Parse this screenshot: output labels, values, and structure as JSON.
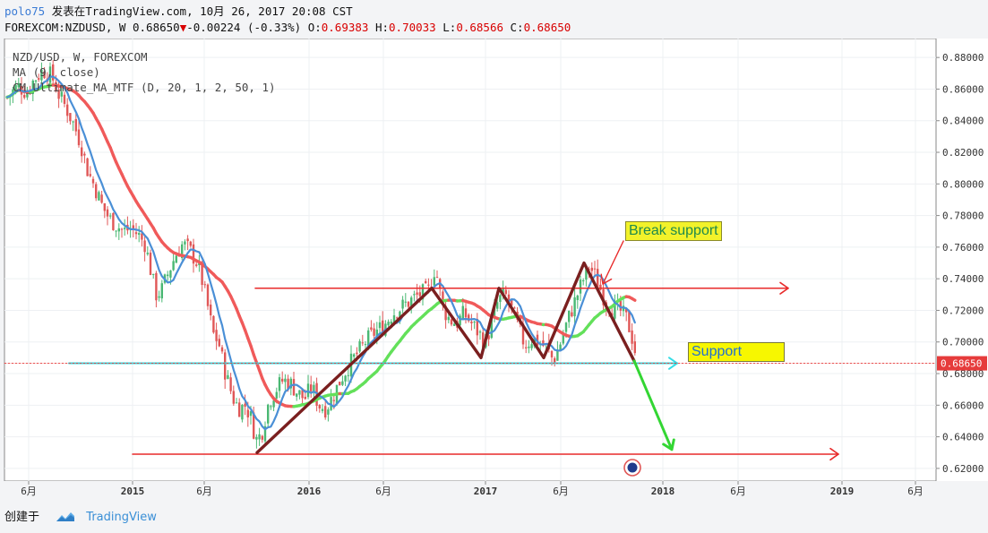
{
  "header": {
    "user": "polo75",
    "published": "发表在TradingView.com, 10月 26, 2017 20:08 CST",
    "symbol_line": "FOREXCOM:NZDUSD, W",
    "last": "0.68650",
    "arrow": "▼",
    "change": "-0.00224 (-0.33%)",
    "o_label": "O:",
    "o_val": "0.69383",
    "h_label": "H:",
    "h_val": "0.70033",
    "l_label": "L:",
    "l_val": "0.68566",
    "c_label": "C:",
    "c_val": "0.68650"
  },
  "legend": {
    "line1": "NZD/USD, W, FOREXCOM",
    "line2": "MA (9, close)",
    "line3": "CM_Ultimate_MA_MTF (D, 20, 1, 2, 50, 1)"
  },
  "annotations": {
    "break_support": "Break support",
    "support": "Support"
  },
  "footer": {
    "created": "创建于",
    "brand": "TradingView"
  },
  "chart_data": {
    "type": "line",
    "title": "NZD/USD, W, FOREXCOM",
    "y_ticks": [
      "0.88000",
      "0.86000",
      "0.84000",
      "0.82000",
      "0.80000",
      "0.78000",
      "0.76000",
      "0.74000",
      "0.72000",
      "0.70000",
      "0.68000",
      "0.66000",
      "0.64000",
      "0.62000"
    ],
    "ylim": [
      0.612,
      0.892
    ],
    "x_ticks": [
      "6月",
      "2015",
      "6月",
      "2016",
      "6月",
      "2017",
      "6月",
      "2018",
      "6月",
      "2019",
      "6月"
    ],
    "current_price_label": "0.68650",
    "price_path": [
      [
        0,
        0.855
      ],
      [
        12,
        0.862
      ],
      [
        22,
        0.858
      ],
      [
        30,
        0.866
      ],
      [
        40,
        0.872
      ],
      [
        50,
        0.868
      ],
      [
        58,
        0.856
      ],
      [
        66,
        0.848
      ],
      [
        74,
        0.838
      ],
      [
        82,
        0.826
      ],
      [
        90,
        0.808
      ],
      [
        98,
        0.798
      ],
      [
        106,
        0.786
      ],
      [
        114,
        0.778
      ],
      [
        122,
        0.774
      ],
      [
        130,
        0.77
      ],
      [
        138,
        0.772
      ],
      [
        146,
        0.768
      ],
      [
        154,
        0.762
      ],
      [
        160,
        0.746
      ],
      [
        166,
        0.73
      ],
      [
        172,
        0.732
      ],
      [
        180,
        0.744
      ],
      [
        188,
        0.755
      ],
      [
        196,
        0.762
      ],
      [
        204,
        0.758
      ],
      [
        212,
        0.75
      ],
      [
        218,
        0.738
      ],
      [
        224,
        0.722
      ],
      [
        230,
        0.705
      ],
      [
        236,
        0.7
      ],
      [
        242,
        0.684
      ],
      [
        248,
        0.672
      ],
      [
        254,
        0.662
      ],
      [
        260,
        0.658
      ],
      [
        266,
        0.66
      ],
      [
        272,
        0.652
      ],
      [
        278,
        0.638
      ],
      [
        284,
        0.642
      ],
      [
        292,
        0.662
      ],
      [
        300,
        0.67
      ],
      [
        308,
        0.676
      ],
      [
        316,
        0.674
      ],
      [
        324,
        0.668
      ],
      [
        332,
        0.664
      ],
      [
        340,
        0.672
      ],
      [
        348,
        0.66
      ],
      [
        356,
        0.658
      ],
      [
        364,
        0.666
      ],
      [
        372,
        0.676
      ],
      [
        380,
        0.684
      ],
      [
        390,
        0.692
      ],
      [
        400,
        0.7
      ],
      [
        410,
        0.706
      ],
      [
        420,
        0.71
      ],
      [
        430,
        0.718
      ],
      [
        440,
        0.722
      ],
      [
        450,
        0.726
      ],
      [
        460,
        0.73
      ],
      [
        470,
        0.732
      ],
      [
        478,
        0.748
      ],
      [
        486,
        0.722
      ],
      [
        494,
        0.714
      ],
      [
        502,
        0.712
      ],
      [
        510,
        0.718
      ],
      [
        518,
        0.712
      ],
      [
        526,
        0.706
      ],
      [
        534,
        0.7
      ],
      [
        540,
        0.71
      ],
      [
        548,
        0.726
      ],
      [
        556,
        0.73
      ],
      [
        562,
        0.722
      ],
      [
        570,
        0.71
      ],
      [
        578,
        0.698
      ],
      [
        586,
        0.702
      ],
      [
        594,
        0.7
      ],
      [
        602,
        0.696
      ],
      [
        610,
        0.688
      ],
      [
        618,
        0.7
      ],
      [
        626,
        0.714
      ],
      [
        634,
        0.726
      ],
      [
        642,
        0.738
      ],
      [
        650,
        0.748
      ],
      [
        656,
        0.742
      ],
      [
        662,
        0.734
      ],
      [
        668,
        0.726
      ],
      [
        676,
        0.722
      ],
      [
        684,
        0.72
      ],
      [
        692,
        0.714
      ],
      [
        698,
        0.702
      ],
      [
        704,
        0.6865
      ]
    ],
    "series": [
      {
        "name": "MA (9, close)",
        "color": "#4a8fd6"
      },
      {
        "name": "CM_Ultimate_MA_MTF",
        "color": "#f05a5a"
      },
      {
        "name": "CM_Ultimate_MA_MTF up",
        "color": "#63e05a"
      }
    ],
    "resistance_level": 0.734,
    "support_level": 0.6865,
    "lower_target": 0.629
  },
  "colors": {
    "up_candle": "#4ab873",
    "down_candle": "#e05757",
    "resistance_line": "#e82a2a",
    "support_line": "#33dde6",
    "pattern_line": "#7a1f1f",
    "projection_arrow": "#33d633",
    "price_tag": "#e63b3b"
  }
}
